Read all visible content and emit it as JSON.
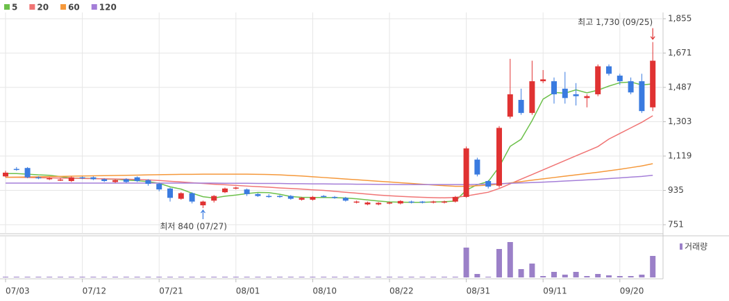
{
  "chart_data": {
    "type": "candlestick",
    "categories": [
      "07/03",
      null,
      null,
      null,
      null,
      null,
      null,
      "07/12",
      null,
      null,
      null,
      null,
      null,
      null,
      "07/21",
      null,
      null,
      null,
      null,
      null,
      null,
      "08/01",
      null,
      null,
      null,
      null,
      null,
      null,
      "08/10",
      null,
      null,
      null,
      null,
      null,
      null,
      "08/22",
      null,
      null,
      null,
      null,
      null,
      null,
      "08/31",
      null,
      null,
      null,
      null,
      null,
      null,
      "09/11",
      null,
      null,
      null,
      null,
      null,
      null,
      "09/20",
      null,
      null,
      null
    ],
    "open": [
      1010,
      1050,
      1055,
      1005,
      995,
      990,
      985,
      1005,
      1005,
      995,
      980,
      995,
      1005,
      990,
      970,
      945,
      890,
      920,
      855,
      880,
      925,
      945,
      940,
      915,
      905,
      905,
      905,
      885,
      885,
      905,
      900,
      895,
      870,
      860,
      860,
      865,
      865,
      875,
      875,
      870,
      870,
      875,
      900,
      1100,
      985,
      960,
      1330,
      1420,
      1350,
      1520,
      1520,
      1480,
      1450,
      1430,
      1450,
      1600,
      1550,
      1520,
      1520,
      1380
    ],
    "high": [
      1040,
      1060,
      1060,
      1010,
      1005,
      1000,
      1010,
      1010,
      1010,
      1000,
      995,
      1000,
      1010,
      995,
      975,
      950,
      925,
      925,
      880,
      910,
      950,
      955,
      945,
      920,
      915,
      910,
      910,
      900,
      905,
      910,
      905,
      900,
      880,
      875,
      872,
      875,
      882,
      880,
      878,
      880,
      880,
      905,
      1170,
      1110,
      990,
      1280,
      1640,
      1480,
      1630,
      1580,
      1540,
      1570,
      1510,
      1450,
      1610,
      1610,
      1560,
      1540,
      1560,
      1730
    ],
    "low": [
      1005,
      1040,
      1000,
      995,
      990,
      985,
      980,
      995,
      990,
      980,
      975,
      975,
      980,
      960,
      930,
      875,
      885,
      865,
      840,
      870,
      920,
      940,
      905,
      900,
      895,
      895,
      885,
      880,
      880,
      895,
      890,
      875,
      865,
      855,
      855,
      860,
      860,
      865,
      865,
      865,
      865,
      870,
      895,
      1010,
      945,
      950,
      1320,
      1340,
      1340,
      1510,
      1400,
      1400,
      1390,
      1380,
      1440,
      1550,
      1500,
      1450,
      1350,
      1360
    ],
    "close": [
      1030,
      1045,
      1005,
      1000,
      1000,
      993,
      1005,
      1000,
      995,
      985,
      990,
      980,
      985,
      970,
      940,
      895,
      920,
      875,
      875,
      905,
      945,
      950,
      915,
      905,
      900,
      900,
      890,
      895,
      900,
      900,
      895,
      880,
      875,
      870,
      868,
      870,
      878,
      870,
      870,
      875,
      875,
      900,
      1160,
      1020,
      955,
      1270,
      1450,
      1350,
      1520,
      1530,
      1450,
      1430,
      1440,
      1440,
      1600,
      1560,
      1520,
      1460,
      1360,
      1630
    ],
    "up_color": "#e03232",
    "down_color": "#3a7be0",
    "moving_averages": [
      {
        "name": "5",
        "color": "#6cc04a",
        "values": [
          1025,
          1025,
          1022,
          1018,
          1016,
          1009,
          1001,
          1000,
          999,
          996,
          995,
          990,
          987,
          982,
          973,
          954,
          942,
          920,
          901,
          894,
          904,
          910,
          918,
          924,
          923,
          914,
          902,
          898,
          897,
          897,
          896,
          894,
          890,
          884,
          878,
          873,
          872,
          871,
          871,
          873,
          874,
          878,
          936,
          966,
          982,
          1061,
          1171,
          1209,
          1309,
          1424,
          1460,
          1456,
          1474,
          1458,
          1472,
          1494,
          1512,
          1516,
          1500,
          1506
        ]
      },
      {
        "name": "20",
        "color": "#f07474",
        "values": [
          1005,
          1005,
          1004,
          1003,
          1002,
          1001,
          1000,
          999,
          998,
          997,
          996,
          995,
          993,
          991,
          988,
          984,
          980,
          976,
          972,
          968,
          965,
          962,
          958,
          955,
          952,
          948,
          945,
          942,
          938,
          935,
          930,
          925,
          920,
          915,
          910,
          906,
          903,
          900,
          898,
          896,
          895,
          897,
          905,
          915,
          925,
          945,
          970,
          995,
          1020,
          1045,
          1070,
          1095,
          1120,
          1145,
          1170,
          1210,
          1240,
          1270,
          1300,
          1335
        ]
      },
      {
        "name": "60",
        "color": "#f5983a",
        "values": [
          1005,
          1006,
          1007,
          1008,
          1009,
          1010,
          1011,
          1012,
          1013,
          1014,
          1015,
          1016,
          1017,
          1018,
          1019,
          1020,
          1021,
          1021,
          1022,
          1022,
          1022,
          1022,
          1022,
          1021,
          1020,
          1018,
          1015,
          1012,
          1008,
          1004,
          1000,
          996,
          992,
          988,
          984,
          980,
          976,
          972,
          968,
          964,
          960,
          957,
          957,
          960,
          963,
          968,
          975,
          982,
          990,
          997,
          1004,
          1011,
          1018,
          1025,
          1032,
          1040,
          1048,
          1057,
          1066,
          1078
        ]
      },
      {
        "name": "120",
        "color": "#a47ed8",
        "values": [
          974,
          974,
          974,
          974,
          974,
          974,
          974,
          974,
          974,
          974,
          974,
          974,
          974,
          974,
          974,
          974,
          974,
          974,
          974,
          974,
          973,
          973,
          973,
          972,
          972,
          972,
          971,
          971,
          970,
          970,
          969,
          969,
          968,
          968,
          967,
          967,
          966,
          966,
          966,
          966,
          966,
          966,
          966,
          967,
          969,
          971,
          973,
          975,
          977,
          979,
          982,
          985,
          988,
          991,
          994,
          998,
          1002,
          1006,
          1010,
          1016
        ]
      }
    ],
    "volume": {
      "name": "거래량",
      "color": "#9b80c8",
      "values": [
        1,
        1,
        1,
        1,
        1,
        1,
        1,
        1,
        1,
        1,
        1,
        1,
        1,
        1,
        1,
        1,
        1,
        1,
        1,
        1,
        1,
        1,
        1,
        1,
        1,
        1,
        1,
        1,
        1,
        1,
        1,
        1,
        1,
        1,
        1,
        1,
        1,
        1,
        1,
        1,
        1,
        1,
        43,
        5,
        1,
        41,
        51,
        12,
        20,
        2,
        8,
        4,
        8,
        2,
        5,
        3,
        2,
        2,
        4,
        31
      ]
    },
    "vlim": [
      0,
      57
    ],
    "ylim": [
      751,
      1855
    ],
    "yticks": [
      {
        "value": 1855,
        "label": "1,855"
      },
      {
        "value": 1671,
        "label": "1,671"
      },
      {
        "value": 1487,
        "label": "1,487"
      },
      {
        "value": 1303,
        "label": "1,303"
      },
      {
        "value": 1119,
        "label": "1,119"
      },
      935,
      751
    ],
    "grid": true,
    "annotations": [
      {
        "label": "최고 1,730 (09/25)",
        "value": 1730,
        "color": "#e03232"
      },
      {
        "label": "최저 840 (07/27)",
        "value": 840,
        "color": "#3a7be0"
      }
    ]
  }
}
